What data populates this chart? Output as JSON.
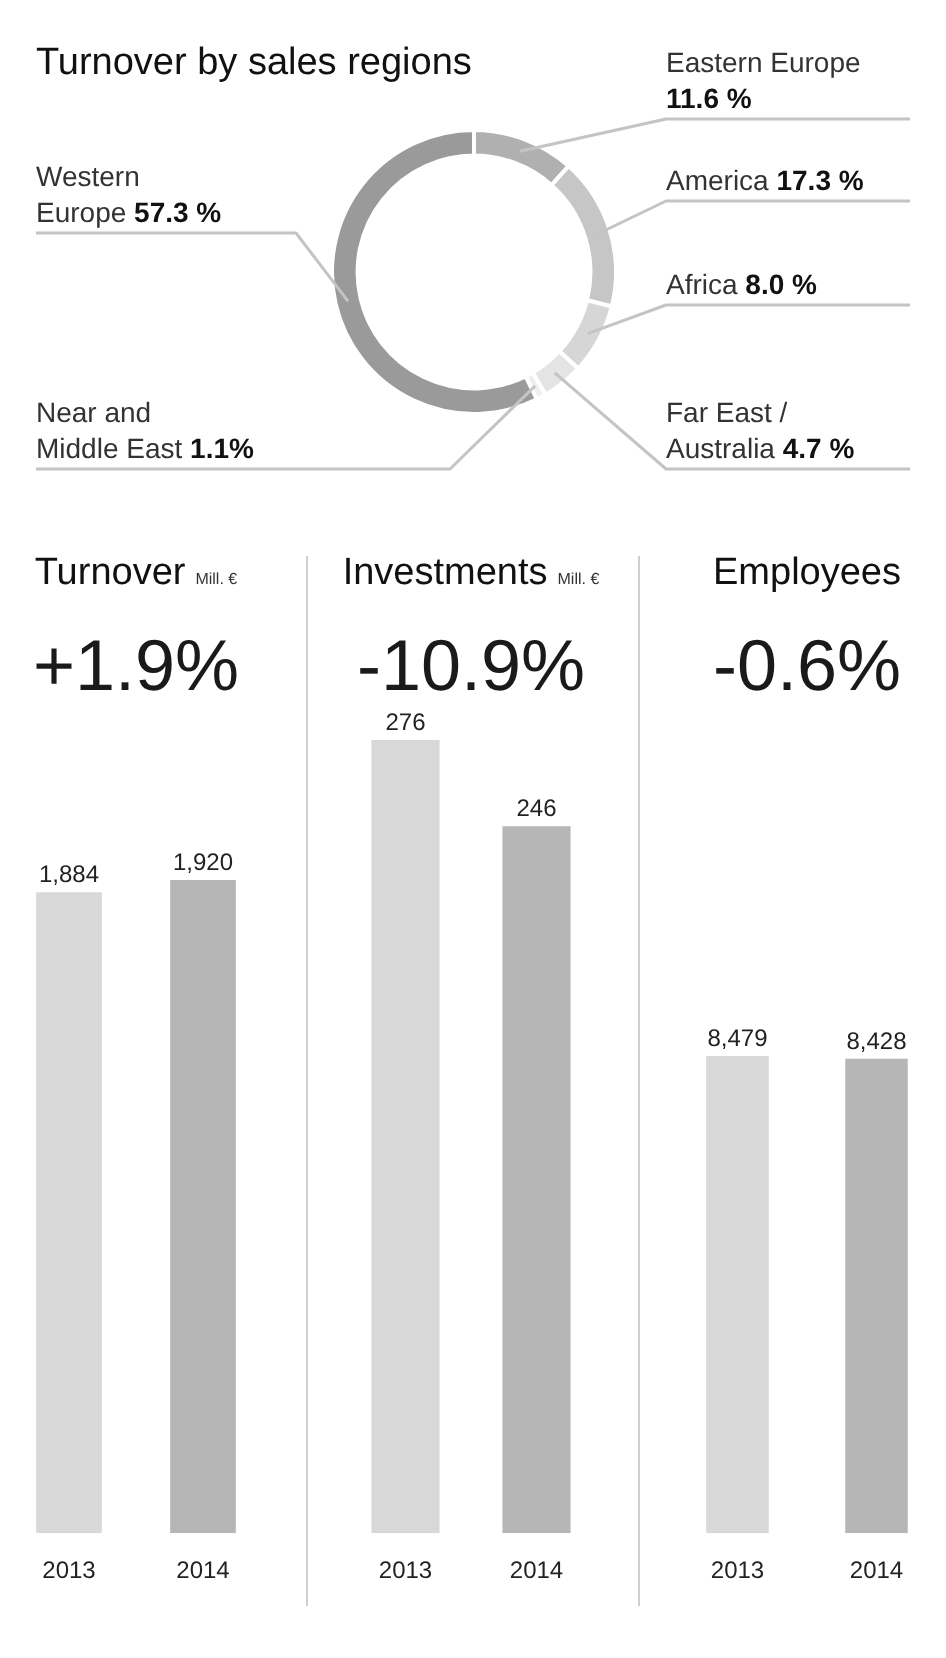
{
  "chart_data": [
    {
      "type": "donut",
      "title": "Turnover by sales regions",
      "categories": [
        "Eastern Europe",
        "America",
        "Africa",
        "Far East / Australia",
        "Near and Middle East",
        "Western Europe"
      ],
      "values": [
        11.6,
        17.3,
        8.0,
        4.7,
        1.1,
        57.3
      ],
      "colors": [
        "#b0b0b0",
        "#c6c6c6",
        "#d6d6d6",
        "#e4e4e4",
        "#efefef",
        "#9a9a9a"
      ],
      "value_labels": [
        "11.6 %",
        "17.3 %",
        "8.0 %",
        "4.7 %",
        "1.1%",
        "57.3 %"
      ]
    },
    {
      "type": "bar",
      "title": "Turnover",
      "subtitle": "Mill. €",
      "annotations": [
        "+1.9%"
      ],
      "categories": [
        "2013",
        "2014"
      ],
      "values": [
        1884,
        1920
      ],
      "colors": [
        "#d8d8d8",
        "#b6b6b6"
      ],
      "value_labels": [
        "1,884",
        "1,920"
      ]
    },
    {
      "type": "bar",
      "title": "Investments",
      "subtitle": "Mill. €",
      "annotations": [
        "-10.9%"
      ],
      "categories": [
        "2013",
        "2014"
      ],
      "values": [
        276,
        246
      ],
      "colors": [
        "#d8d8d8",
        "#b6b6b6"
      ],
      "value_labels": [
        "276",
        "246"
      ]
    },
    {
      "type": "bar",
      "title": "Employees",
      "annotations": [
        "-0.6%"
      ],
      "categories": [
        "2013",
        "2014"
      ],
      "values": [
        8479,
        8428
      ],
      "colors": [
        "#d8d8d8",
        "#b6b6b6"
      ],
      "value_labels": [
        "8,479",
        "8,428"
      ]
    }
  ]
}
